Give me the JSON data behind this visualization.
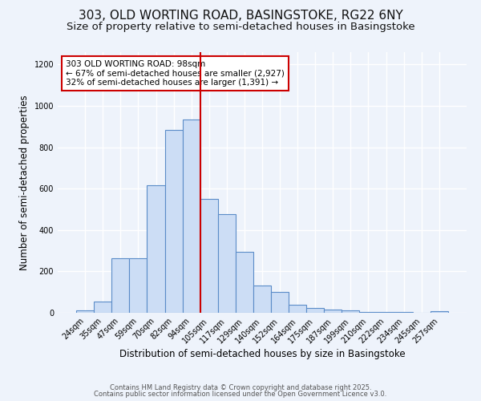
{
  "title1": "303, OLD WORTING ROAD, BASINGSTOKE, RG22 6NY",
  "title2": "Size of property relative to semi-detached houses in Basingstoke",
  "xlabel": "Distribution of semi-detached houses by size in Basingstoke",
  "ylabel": "Number of semi-detached properties",
  "categories": [
    "24sqm",
    "35sqm",
    "47sqm",
    "59sqm",
    "70sqm",
    "82sqm",
    "94sqm",
    "105sqm",
    "117sqm",
    "129sqm",
    "140sqm",
    "152sqm",
    "164sqm",
    "175sqm",
    "187sqm",
    "199sqm",
    "210sqm",
    "222sqm",
    "234sqm",
    "245sqm",
    "257sqm"
  ],
  "values": [
    10,
    55,
    265,
    265,
    615,
    885,
    935,
    550,
    475,
    295,
    130,
    100,
    40,
    25,
    15,
    13,
    5,
    2,
    2,
    1,
    8
  ],
  "bar_color": "#ccddf5",
  "bar_edge_color": "#5b8cc8",
  "bg_color": "#eef3fb",
  "grid_color": "#ffffff",
  "vline_x_index": 6,
  "vline_color": "#cc0000",
  "annotation_title": "303 OLD WORTING ROAD: 98sqm",
  "annotation_line1": "← 67% of semi-detached houses are smaller (2,927)",
  "annotation_line2": "32% of semi-detached houses are larger (1,391) →",
  "annotation_box_color": "#ffffff",
  "annotation_edge_color": "#cc0000",
  "ylim": [
    0,
    1260
  ],
  "yticks": [
    0,
    200,
    400,
    600,
    800,
    1000,
    1200
  ],
  "footer1": "Contains HM Land Registry data © Crown copyright and database right 2025.",
  "footer2": "Contains public sector information licensed under the Open Government Licence v3.0.",
  "title1_fontsize": 11,
  "title2_fontsize": 9.5,
  "tick_fontsize": 7,
  "ylabel_fontsize": 8.5,
  "xlabel_fontsize": 8.5,
  "footer_fontsize": 6.0
}
